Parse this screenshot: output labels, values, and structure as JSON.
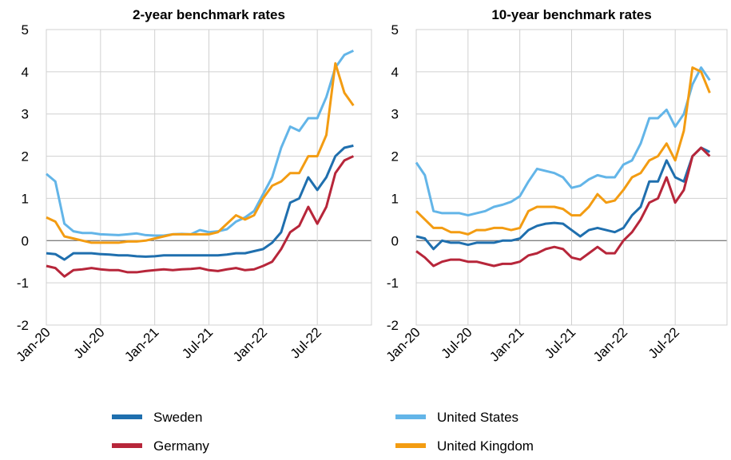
{
  "chart_data": [
    {
      "type": "line",
      "title": "2-year benchmark rates",
      "categories": [
        "Jan-20",
        null,
        null,
        null,
        null,
        null,
        "Jul-20",
        null,
        null,
        null,
        null,
        null,
        "Jan-21",
        null,
        null,
        null,
        null,
        null,
        "Jul-21",
        null,
        null,
        null,
        null,
        null,
        "Jan-22",
        null,
        null,
        null,
        null,
        null,
        "Jul-22",
        null,
        null,
        null,
        null
      ],
      "ylim": [
        -2,
        5
      ],
      "yticks": [
        -2,
        -1,
        0,
        1,
        2,
        3,
        4,
        5
      ],
      "grid": true,
      "series": [
        {
          "name": "Sweden",
          "color": "#1f6fae",
          "values": [
            -0.3,
            -0.32,
            -0.45,
            -0.3,
            -0.3,
            -0.3,
            -0.32,
            -0.33,
            -0.35,
            -0.35,
            -0.37,
            -0.38,
            -0.37,
            -0.35,
            -0.35,
            -0.35,
            -0.35,
            -0.35,
            -0.35,
            -0.35,
            -0.33,
            -0.3,
            -0.3,
            -0.25,
            -0.2,
            -0.05,
            0.2,
            0.9,
            1.0,
            1.5,
            1.2,
            1.5,
            2.0,
            2.2,
            2.25
          ]
        },
        {
          "name": "Germany",
          "color": "#b7263a",
          "values": [
            -0.6,
            -0.65,
            -0.85,
            -0.7,
            -0.68,
            -0.65,
            -0.68,
            -0.7,
            -0.7,
            -0.75,
            -0.75,
            -0.72,
            -0.7,
            -0.68,
            -0.7,
            -0.68,
            -0.67,
            -0.65,
            -0.7,
            -0.72,
            -0.68,
            -0.65,
            -0.7,
            -0.68,
            -0.6,
            -0.5,
            -0.2,
            0.2,
            0.35,
            0.8,
            0.4,
            0.8,
            1.6,
            1.9,
            2.0
          ]
        },
        {
          "name": "United States",
          "color": "#63b5e8",
          "values": [
            1.58,
            1.4,
            0.4,
            0.22,
            0.18,
            0.18,
            0.15,
            0.14,
            0.13,
            0.15,
            0.17,
            0.13,
            0.12,
            0.12,
            0.15,
            0.16,
            0.15,
            0.25,
            0.2,
            0.22,
            0.27,
            0.45,
            0.55,
            0.7,
            1.1,
            1.5,
            2.2,
            2.7,
            2.6,
            2.9,
            2.9,
            3.4,
            4.1,
            4.4,
            4.5
          ]
        },
        {
          "name": "United Kingdom",
          "color": "#f39c12",
          "values": [
            0.55,
            0.45,
            0.1,
            0.05,
            0.0,
            -0.05,
            -0.05,
            -0.05,
            -0.05,
            -0.02,
            -0.02,
            0.0,
            0.05,
            0.1,
            0.15,
            0.15,
            0.15,
            0.15,
            0.15,
            0.2,
            0.4,
            0.6,
            0.5,
            0.6,
            1.0,
            1.3,
            1.4,
            1.6,
            1.6,
            2.0,
            2.0,
            2.5,
            4.2,
            3.5,
            3.2
          ]
        }
      ]
    },
    {
      "type": "line",
      "title": "10-year benchmark rates",
      "categories": [
        "Jan-20",
        null,
        null,
        null,
        null,
        null,
        "Jul-20",
        null,
        null,
        null,
        null,
        null,
        "Jan-21",
        null,
        null,
        null,
        null,
        null,
        "Jul-21",
        null,
        null,
        null,
        null,
        null,
        "Jan-22",
        null,
        null,
        null,
        null,
        null,
        "Jul-22",
        null,
        null,
        null,
        null
      ],
      "ylim": [
        -2,
        5
      ],
      "yticks": [
        -2,
        -1,
        0,
        1,
        2,
        3,
        4,
        5
      ],
      "grid": true,
      "series": [
        {
          "name": "Sweden",
          "color": "#1f6fae",
          "values": [
            0.1,
            0.05,
            -0.2,
            0.0,
            -0.05,
            -0.05,
            -0.1,
            -0.05,
            -0.05,
            -0.05,
            0.0,
            0.0,
            0.05,
            0.25,
            0.35,
            0.4,
            0.42,
            0.4,
            0.25,
            0.1,
            0.25,
            0.3,
            0.25,
            0.2,
            0.3,
            0.6,
            0.8,
            1.4,
            1.4,
            1.9,
            1.5,
            1.4,
            2.0,
            2.2,
            2.1
          ]
        },
        {
          "name": "Germany",
          "color": "#b7263a",
          "values": [
            -0.25,
            -0.4,
            -0.6,
            -0.5,
            -0.45,
            -0.45,
            -0.5,
            -0.5,
            -0.55,
            -0.6,
            -0.55,
            -0.55,
            -0.5,
            -0.35,
            -0.3,
            -0.2,
            -0.15,
            -0.2,
            -0.4,
            -0.45,
            -0.3,
            -0.15,
            -0.3,
            -0.3,
            0.0,
            0.2,
            0.5,
            0.9,
            1.0,
            1.5,
            0.9,
            1.2,
            2.0,
            2.2,
            2.0
          ]
        },
        {
          "name": "United States",
          "color": "#63b5e8",
          "values": [
            1.85,
            1.55,
            0.7,
            0.65,
            0.65,
            0.65,
            0.6,
            0.65,
            0.7,
            0.8,
            0.85,
            0.92,
            1.05,
            1.4,
            1.7,
            1.65,
            1.6,
            1.5,
            1.25,
            1.3,
            1.45,
            1.55,
            1.5,
            1.5,
            1.8,
            1.9,
            2.3,
            2.9,
            2.9,
            3.1,
            2.7,
            3.0,
            3.7,
            4.1,
            3.8
          ]
        },
        {
          "name": "United Kingdom",
          "color": "#f39c12",
          "values": [
            0.7,
            0.5,
            0.3,
            0.3,
            0.2,
            0.2,
            0.15,
            0.25,
            0.25,
            0.3,
            0.3,
            0.25,
            0.3,
            0.7,
            0.8,
            0.8,
            0.8,
            0.75,
            0.6,
            0.6,
            0.8,
            1.1,
            0.9,
            0.95,
            1.2,
            1.5,
            1.6,
            1.9,
            2.0,
            2.3,
            1.9,
            2.6,
            4.1,
            4.0,
            3.5
          ]
        }
      ]
    }
  ]
}
